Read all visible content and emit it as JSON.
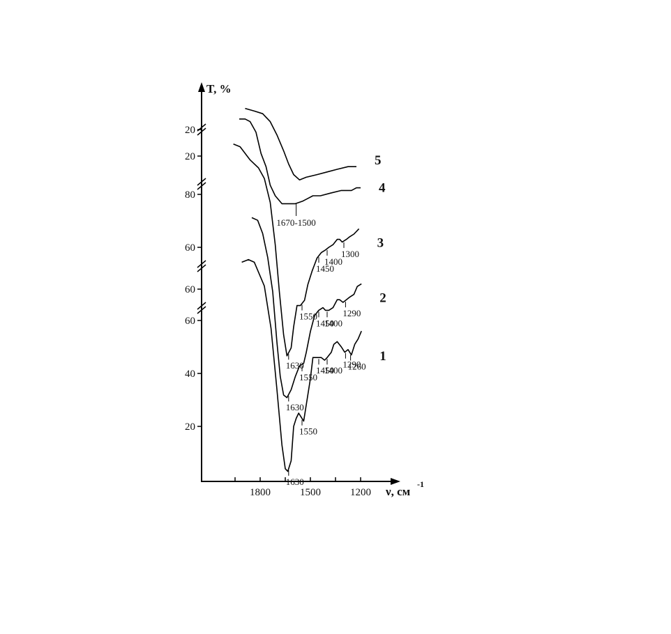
{
  "chart_data": {
    "type": "line",
    "y_label": "T, %",
    "x_label": "ν, см",
    "x_label_sup": "-1",
    "xlim": [
      2150,
      1000
    ],
    "xticks": [
      1800,
      1500,
      1200
    ],
    "xminorticks": [
      1950,
      1650,
      1350
    ],
    "series": [
      {
        "name": "1",
        "yticks": [
          20,
          40,
          60
        ],
        "x": [
          1910,
          1870,
          1835,
          1775,
          1735,
          1700,
          1670,
          1650,
          1635,
          1615,
          1600,
          1585,
          1570,
          1560,
          1540,
          1525,
          1500,
          1485,
          1460,
          1435,
          1415,
          1400,
          1375,
          1360,
          1340,
          1315,
          1295,
          1275,
          1255,
          1235,
          1215,
          1195
        ],
        "values": [
          82,
          83,
          82,
          73,
          57,
          34,
          13,
          4,
          3,
          7,
          20,
          23,
          25,
          24,
          22,
          28,
          38,
          46,
          46,
          46,
          45,
          46,
          48,
          51,
          52,
          50,
          48,
          49,
          47,
          51,
          53,
          56
        ],
        "annotations": [
          1630,
          1550,
          1450,
          1400,
          1290,
          1260
        ]
      },
      {
        "name": "2",
        "yticks": [
          60
        ],
        "x": [
          1850,
          1815,
          1785,
          1755,
          1725,
          1700,
          1680,
          1660,
          1640,
          1615,
          1590,
          1565,
          1540,
          1525,
          1500,
          1475,
          1450,
          1425,
          1410,
          1390,
          1365,
          1340,
          1325,
          1305,
          1285,
          1265,
          1240,
          1220,
          1195
        ],
        "values": [
          87,
          86,
          81,
          72,
          59,
          40,
          27,
          20,
          19,
          22,
          27,
          31,
          32,
          36,
          44,
          50,
          52,
          53,
          52,
          52,
          53,
          56,
          56,
          55,
          56,
          57,
          58,
          61,
          62
        ],
        "annotations": [
          1630,
          1550,
          1450,
          1400,
          1290
        ]
      },
      {
        "name": "3",
        "yticks": [
          60,
          80
        ],
        "x": [
          1960,
          1920,
          1860,
          1810,
          1775,
          1740,
          1710,
          1685,
          1660,
          1640,
          1615,
          1600,
          1580,
          1560,
          1535,
          1515,
          1490,
          1460,
          1435,
          1410,
          1390,
          1365,
          1340,
          1325,
          1310,
          1285,
          1265,
          1240,
          1210
        ],
        "values": [
          99,
          98,
          93,
          90,
          86,
          77,
          61,
          43,
          27,
          19,
          22,
          30,
          38,
          38,
          40,
          46,
          51,
          56,
          58,
          59,
          60,
          61,
          63,
          63,
          62,
          63,
          64,
          65,
          67
        ],
        "annotations": [
          1630,
          1550,
          1450,
          1400,
          1300
        ]
      },
      {
        "name": "4",
        "yticks": [
          20
        ],
        "x": [
          1925,
          1890,
          1860,
          1825,
          1795,
          1765,
          1740,
          1710,
          1670,
          1630,
          1590,
          1545,
          1515,
          1485,
          1440,
          1380,
          1315,
          1255,
          1225,
          1200
        ],
        "values": [
          34,
          34,
          33,
          29,
          21,
          16,
          9,
          5,
          2,
          2,
          2,
          3,
          4,
          5,
          5,
          6,
          7,
          7,
          8,
          8
        ],
        "annotations": [
          {
            "range": [
              1670,
              1500
            ],
            "label": "1670-1500"
          }
        ]
      },
      {
        "name": "5",
        "yticks": [
          20
        ],
        "x": [
          1890,
          1835,
          1785,
          1740,
          1700,
          1660,
          1630,
          1600,
          1565,
          1525,
          1460,
          1400,
          1340,
          1275,
          1225
        ],
        "values": [
          28,
          27,
          26,
          23,
          18,
          12,
          7,
          3,
          1,
          2,
          3,
          4,
          5,
          6,
          6
        ],
        "annotations": []
      }
    ]
  }
}
